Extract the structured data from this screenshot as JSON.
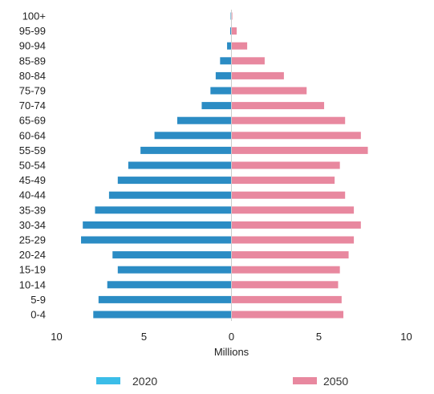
{
  "chart_data": {
    "type": "bar",
    "orientation": "horizontal-population-pyramid",
    "categories": [
      "0-4",
      "5-9",
      "10-14",
      "15-19",
      "20-24",
      "25-29",
      "30-34",
      "35-39",
      "40-44",
      "45-49",
      "50-54",
      "55-59",
      "60-64",
      "65-69",
      "70-74",
      "75-79",
      "80-84",
      "85-89",
      "90-94",
      "95-99",
      "100+"
    ],
    "series": [
      {
        "name": "2020",
        "side": "left",
        "color": "#2b8cc4",
        "legend_color": "#3bbde8",
        "values": [
          7.9,
          7.6,
          7.1,
          6.5,
          6.8,
          8.6,
          8.5,
          7.8,
          7.0,
          6.5,
          5.9,
          5.2,
          4.4,
          3.1,
          1.7,
          1.2,
          0.9,
          0.65,
          0.25,
          0.07,
          0.02
        ]
      },
      {
        "name": "2050",
        "side": "right",
        "color": "#e8889f",
        "legend_color": "#e8889f",
        "values": [
          6.4,
          6.3,
          6.1,
          6.2,
          6.7,
          7.0,
          7.4,
          7.0,
          6.5,
          5.9,
          6.2,
          7.8,
          7.4,
          6.5,
          5.3,
          4.3,
          3.0,
          1.9,
          0.9,
          0.3,
          0.05
        ]
      }
    ],
    "xlim": [
      -10,
      10
    ],
    "xticks": [
      {
        "value": -10,
        "label": "10"
      },
      {
        "value": -5,
        "label": "5"
      },
      {
        "value": 0,
        "label": "0"
      },
      {
        "value": 5,
        "label": "5"
      },
      {
        "value": 10,
        "label": "10"
      }
    ],
    "xlabel": "Millions",
    "ylabel": "",
    "title": "",
    "grid": false,
    "legend_position": "bottom"
  }
}
